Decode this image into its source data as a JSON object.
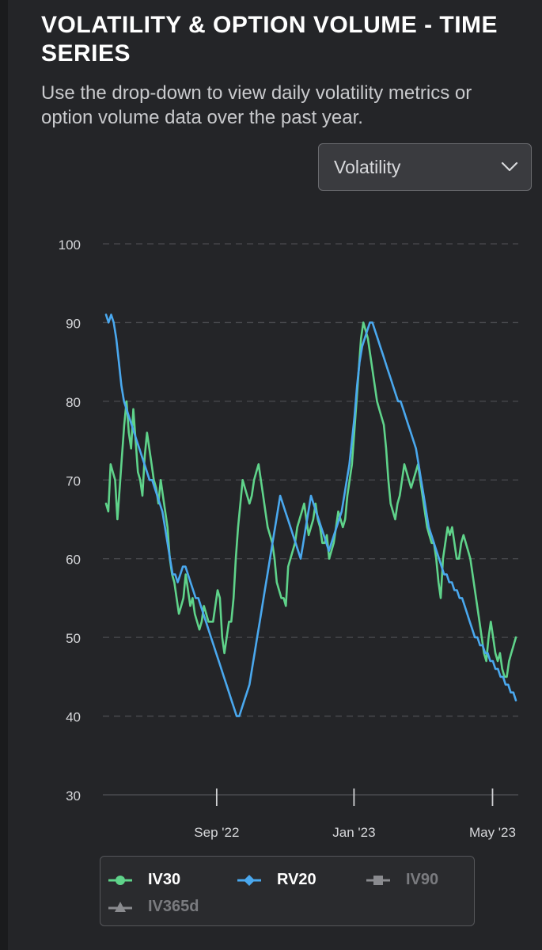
{
  "header": {
    "title": "VOLATILITY & OPTION VOLUME - TIME SERIES",
    "subtitle": "Use the drop-down to view daily volatility metrics or option volume data over the past year."
  },
  "dropdown": {
    "selected": "Volatility",
    "icon": "chevron-down-icon"
  },
  "colors": {
    "IV30": "#5fd38a",
    "RV20": "#4aa8ee",
    "IV90": "#8a8b8f",
    "IV365d": "#8a8b8f",
    "grid": "#4a4b4f",
    "tick_text": "#d6d7da"
  },
  "chart_data": {
    "type": "line",
    "y_ticks": [
      30,
      40,
      50,
      60,
      70,
      80,
      90,
      100
    ],
    "ylim": [
      30,
      100
    ],
    "grid": true,
    "x_ticks": [
      {
        "label": "Sep '22",
        "t": 0.27
      },
      {
        "label": "Jan '23",
        "t": 0.605
      },
      {
        "label": "May '23",
        "t": 0.943
      }
    ],
    "legend_position": "bottom",
    "series": [
      {
        "name": "IV30",
        "marker": "circle",
        "active": true,
        "values": [
          67,
          66,
          72,
          71,
          70,
          65,
          69,
          73,
          77,
          80,
          76,
          74,
          79,
          75,
          71,
          70,
          68,
          73,
          76,
          74,
          72,
          70,
          69,
          67,
          70,
          68,
          66,
          64,
          60,
          58,
          57,
          55,
          53,
          54,
          55,
          58,
          56,
          54,
          55,
          53,
          52,
          51,
          52,
          54,
          53,
          52,
          52,
          52,
          54,
          56,
          55,
          50,
          48,
          50,
          52,
          52,
          55,
          60,
          64,
          67,
          70,
          69,
          68,
          67,
          68,
          70,
          71,
          72,
          70,
          68,
          66,
          64,
          63,
          62,
          60,
          57,
          56,
          55,
          55,
          54,
          59,
          60,
          61,
          62,
          64,
          65,
          66,
          67,
          65,
          63,
          64,
          65,
          67,
          65,
          64,
          62,
          62,
          63,
          60,
          61,
          62,
          64,
          66,
          65,
          64,
          65,
          68,
          70,
          72,
          76,
          80,
          84,
          88,
          90,
          89,
          88,
          86,
          84,
          82,
          80,
          79,
          78,
          77,
          74,
          70,
          67,
          66,
          65,
          67,
          68,
          70,
          72,
          71,
          70,
          69,
          70,
          71,
          72,
          70,
          68,
          66,
          64,
          63,
          62,
          62,
          60,
          57,
          55,
          60,
          62,
          64,
          63,
          64,
          62,
          60,
          60,
          62,
          63,
          62,
          61,
          60,
          58,
          56,
          54,
          52,
          50,
          48,
          47,
          50,
          52,
          50,
          48,
          47,
          48,
          46,
          45,
          45,
          47,
          48,
          49,
          50
        ]
      },
      {
        "name": "RV20",
        "marker": "diamond",
        "active": true,
        "values": [
          91,
          90,
          91,
          90,
          88,
          85,
          82,
          80,
          79,
          78,
          77,
          76,
          75,
          74,
          73,
          72,
          71,
          70,
          70,
          69,
          68,
          67,
          66,
          64,
          62,
          60,
          58,
          58,
          57,
          58,
          59,
          59,
          58,
          57,
          56,
          55,
          55,
          54,
          53,
          52,
          51,
          50,
          49,
          48,
          47,
          46,
          45,
          44,
          43,
          42,
          41,
          40,
          40,
          41,
          42,
          43,
          44,
          46,
          48,
          50,
          52,
          54,
          56,
          58,
          60,
          62,
          64,
          66,
          68,
          67,
          66,
          65,
          64,
          63,
          62,
          61,
          60,
          62,
          64,
          66,
          68,
          67,
          66,
          65,
          64,
          63,
          62,
          61,
          62,
          63,
          64,
          65,
          66,
          68,
          70,
          72,
          75,
          78,
          82,
          85,
          87,
          88,
          89,
          90,
          90,
          89,
          88,
          87,
          86,
          85,
          84,
          83,
          82,
          81,
          80,
          80,
          79,
          78,
          77,
          76,
          75,
          74,
          72,
          70,
          68,
          66,
          64,
          63,
          62,
          61,
          60,
          59,
          58,
          58,
          57,
          57,
          56,
          56,
          55,
          55,
          54,
          53,
          52,
          51,
          50,
          50,
          49,
          49,
          48,
          48,
          47,
          47,
          46,
          46,
          45,
          45,
          44,
          44,
          43,
          43,
          42
        ]
      },
      {
        "name": "IV90",
        "marker": "square",
        "active": false
      },
      {
        "name": "IV365d",
        "marker": "triangle",
        "active": false
      }
    ]
  }
}
